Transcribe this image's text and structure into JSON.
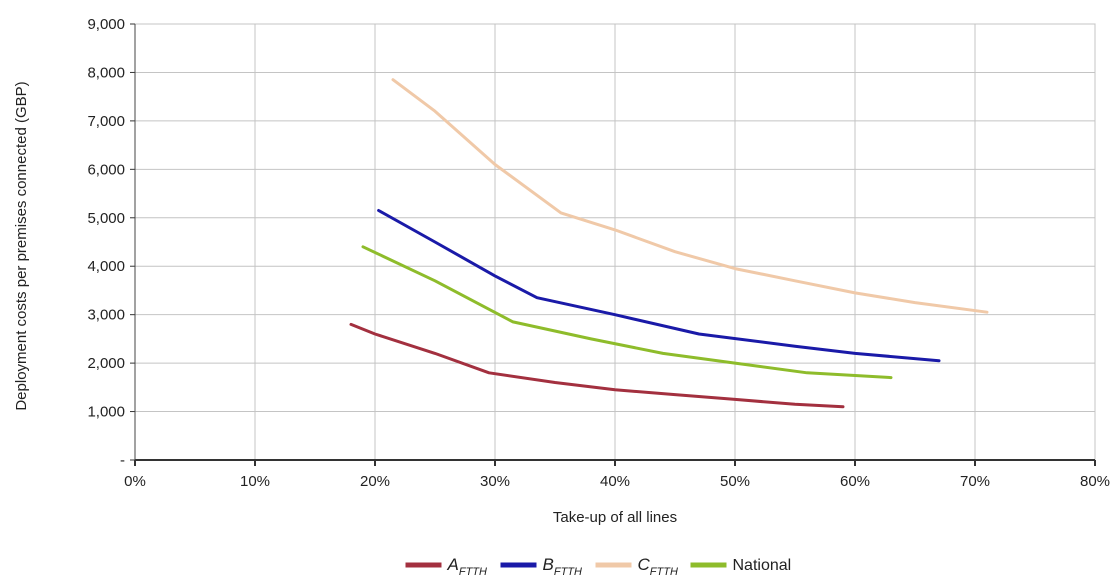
{
  "chart_data": {
    "type": "line",
    "title": "",
    "xlabel": "Take-up of all lines",
    "ylabel": "Deployment costs per premises connected (GBP)",
    "xlim": [
      0,
      80
    ],
    "ylim": [
      0,
      9000
    ],
    "x_ticks": [
      "0%",
      "10%",
      "20%",
      "30%",
      "40%",
      "50%",
      "60%",
      "70%",
      "80%"
    ],
    "y_ticks": [
      "-",
      "1,000",
      "2,000",
      "3,000",
      "4,000",
      "5,000",
      "6,000",
      "7,000",
      "8,000",
      "9,000"
    ],
    "grid": true,
    "legend_position": "bottom",
    "series": [
      {
        "name": "A",
        "name_sub": "FTTH",
        "color": "#a3303f",
        "points": [
          [
            18,
            2800
          ],
          [
            20,
            2600
          ],
          [
            25,
            2200
          ],
          [
            29.5,
            1800
          ],
          [
            35,
            1600
          ],
          [
            40,
            1450
          ],
          [
            45,
            1350
          ],
          [
            50,
            1250
          ],
          [
            55,
            1150
          ],
          [
            59,
            1100
          ]
        ]
      },
      {
        "name": "B",
        "name_sub": "FTTH",
        "color": "#1a1aa8",
        "points": [
          [
            20.3,
            5150
          ],
          [
            25,
            4500
          ],
          [
            30,
            3800
          ],
          [
            33.5,
            3350
          ],
          [
            40,
            3000
          ],
          [
            47,
            2600
          ],
          [
            55,
            2350
          ],
          [
            60,
            2200
          ],
          [
            67,
            2050
          ]
        ]
      },
      {
        "name": "C",
        "name_sub": "FTTH",
        "color": "#f0c9a8",
        "points": [
          [
            21.5,
            7850
          ],
          [
            25,
            7200
          ],
          [
            30,
            6100
          ],
          [
            35.5,
            5100
          ],
          [
            40,
            4750
          ],
          [
            45,
            4300
          ],
          [
            50,
            3950
          ],
          [
            55,
            3700
          ],
          [
            60,
            3450
          ],
          [
            65,
            3250
          ],
          [
            71,
            3050
          ]
        ]
      },
      {
        "name": "National",
        "name_sub": "",
        "color": "#8ebc2b",
        "points": [
          [
            19,
            4400
          ],
          [
            25,
            3700
          ],
          [
            31.5,
            2850
          ],
          [
            38,
            2500
          ],
          [
            44,
            2200
          ],
          [
            50,
            2000
          ],
          [
            56,
            1800
          ],
          [
            63,
            1700
          ]
        ]
      }
    ]
  }
}
